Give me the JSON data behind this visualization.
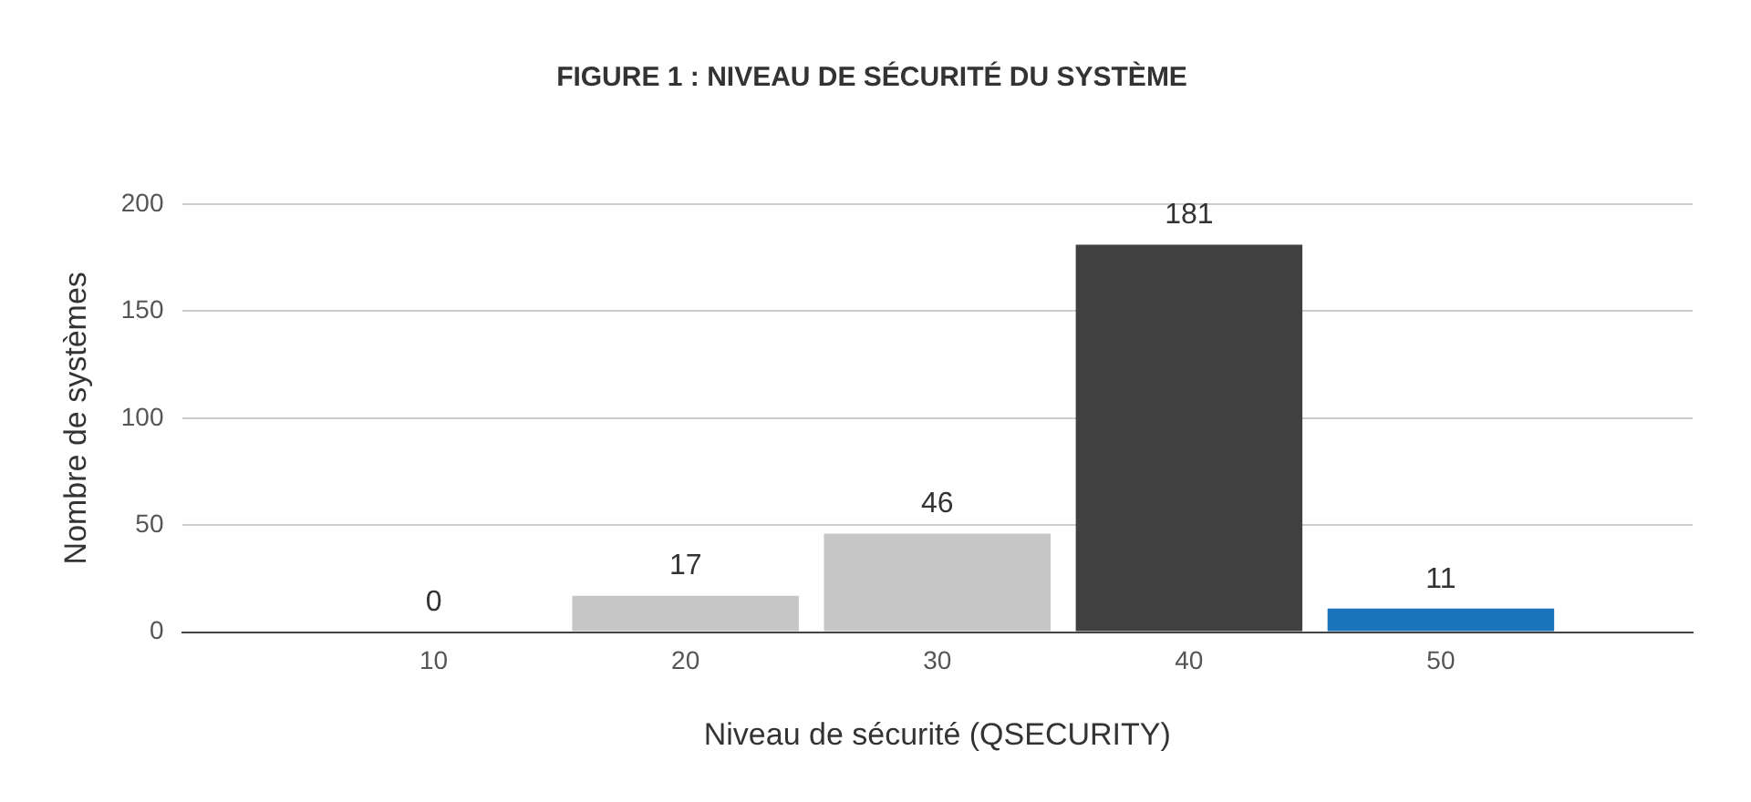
{
  "chart_data": {
    "type": "bar",
    "title": "FIGURE 1 : NIVEAU DE SÉCURITÉ DU SYSTÈME",
    "xlabel": "Niveau de sécurité (QSECURITY)",
    "ylabel": "Nombre de systèmes",
    "x": [
      10,
      20,
      30,
      40,
      50
    ],
    "values": [
      0,
      17,
      46,
      181,
      11
    ],
    "colors": [
      "#c6c6c6",
      "#c6c6c6",
      "#c6c6c6",
      "#404040",
      "#1a73bb"
    ],
    "xlim": [
      0,
      60
    ],
    "xticks": [
      10,
      20,
      30,
      40,
      50
    ],
    "ylim": [
      0,
      200
    ],
    "yticks": [
      0,
      50,
      100,
      150,
      200
    ],
    "grid": "y",
    "data_labels": true,
    "legend": false
  }
}
